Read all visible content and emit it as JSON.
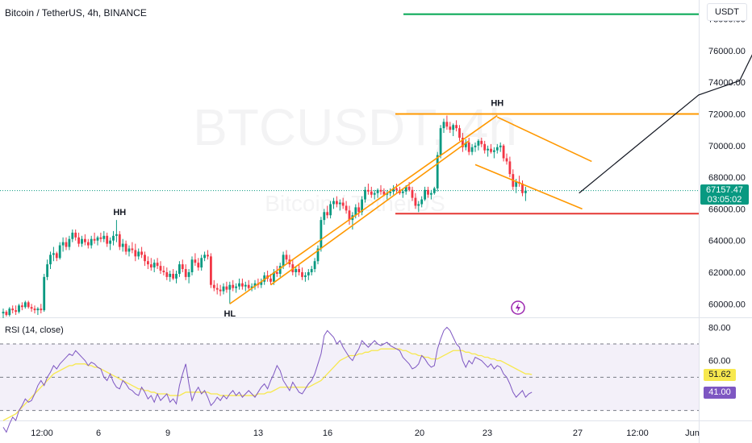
{
  "header": {
    "ticker_line": "Bitcoin / TetherUS, 4h, BINANCE",
    "currency_button": "USDT",
    "watermark_main": "BTCUSDT, 4h",
    "watermark_sub": "Bitcoin / TetherUS"
  },
  "rsi": {
    "label": "RSI (14, close)",
    "ma_value": "51.62",
    "rsi_value": "41.00",
    "ma_color": "#f7e84e",
    "rsi_color": "#7e57c2"
  },
  "last_price": {
    "value": "67157.47",
    "countdown": "03:05:02",
    "color": "#089981"
  },
  "colors": {
    "up": "#089981",
    "down": "#f23645",
    "trendline": "#ff9800",
    "target_green": "#00a651",
    "support_red": "#e53935",
    "projection": "#131722"
  },
  "chart_data": {
    "type": "candlestick",
    "price_ticks": [
      "60000.00",
      "62000.00",
      "64000.00",
      "66000.00",
      "68000.00",
      "70000.00",
      "72000.00",
      "74000.00",
      "76000.00",
      "78000.00"
    ],
    "price_range": [
      59200,
      79200
    ],
    "rsi_ticks": [
      "80.00",
      "60.00"
    ],
    "rsi_range": [
      25,
      85
    ],
    "rsi_bands": [
      70,
      50,
      30
    ],
    "x_ticks": [
      "12:00",
      "6",
      "9",
      "13",
      "16",
      "20",
      "23",
      "27",
      "12:00",
      "Jun"
    ],
    "annotations": [
      {
        "text": "HH",
        "price": 65300,
        "bar": 37
      },
      {
        "text": "HL",
        "price": 59900,
        "bar": 72
      },
      {
        "text": "HH",
        "price": 72200,
        "bar": 157
      }
    ],
    "horizontal_levels": [
      {
        "price": 79500,
        "color": "green"
      },
      {
        "price": 78300,
        "color": "green"
      },
      {
        "price": 72000,
        "color": "orange"
      },
      {
        "price": 65700,
        "color": "red"
      }
    ],
    "trend_channel": [
      {
        "from_bar": 72,
        "from_price": 60000,
        "to_bar": 157,
        "to_price": 71900
      },
      {
        "from_bar": 85,
        "from_price": 61200,
        "to_bar": 148,
        "to_price": 70300
      },
      {
        "from_bar": 157,
        "from_price": 71800,
        "to_bar": 187,
        "to_price": 69000
      },
      {
        "from_bar": 150,
        "from_price": 68800,
        "to_bar": 184,
        "to_price": 66000
      }
    ],
    "projection_path": [
      {
        "bar": 183,
        "price": 67000
      },
      {
        "bar": 221,
        "price": 73200
      },
      {
        "bar": 234,
        "price": 74100
      },
      {
        "bar": 247,
        "price": 79400
      }
    ],
    "ohlc": [
      [
        59400,
        59700,
        59100,
        59500
      ],
      [
        59500,
        59600,
        59200,
        59300
      ],
      [
        59300,
        59800,
        59200,
        59700
      ],
      [
        59700,
        59900,
        59400,
        59600
      ],
      [
        59600,
        59900,
        59300,
        59500
      ],
      [
        59500,
        60000,
        59400,
        59900
      ],
      [
        59900,
        60100,
        59600,
        59800
      ],
      [
        59800,
        60200,
        59700,
        60100
      ],
      [
        60100,
        60200,
        59700,
        59800
      ],
      [
        59800,
        60000,
        59500,
        59700
      ],
      [
        59700,
        59900,
        59400,
        59600
      ],
      [
        59600,
        59800,
        59300,
        59700
      ],
      [
        59700,
        60000,
        59400,
        59600
      ],
      [
        59600,
        61900,
        59500,
        61700
      ],
      [
        61700,
        62800,
        61500,
        62500
      ],
      [
        62500,
        63300,
        62200,
        63100
      ],
      [
        63100,
        63600,
        62700,
        63200
      ],
      [
        63200,
        63300,
        62700,
        62900
      ],
      [
        62900,
        63900,
        62800,
        63700
      ],
      [
        63700,
        64200,
        63300,
        63900
      ],
      [
        63900,
        64200,
        63400,
        63600
      ],
      [
        63600,
        64300,
        63400,
        64100
      ],
      [
        64100,
        64700,
        63900,
        64500
      ],
      [
        64500,
        64700,
        64000,
        64200
      ],
      [
        64200,
        64500,
        63600,
        63800
      ],
      [
        63800,
        64300,
        63600,
        64100
      ],
      [
        64100,
        64400,
        63700,
        63900
      ],
      [
        63900,
        64100,
        63500,
        63700
      ],
      [
        63700,
        64300,
        63500,
        64100
      ],
      [
        64100,
        64500,
        63800,
        64000
      ],
      [
        64000,
        64300,
        63700,
        64200
      ],
      [
        64200,
        64500,
        63900,
        64100
      ],
      [
        64100,
        64600,
        63900,
        64300
      ],
      [
        64300,
        64500,
        63600,
        63800
      ],
      [
        63800,
        64200,
        63400,
        64000
      ],
      [
        64000,
        64600,
        63700,
        64300
      ],
      [
        64300,
        65300,
        63900,
        64400
      ],
      [
        64400,
        64600,
        63400,
        63600
      ],
      [
        63600,
        64100,
        63300,
        63800
      ],
      [
        63800,
        64000,
        63100,
        63300
      ],
      [
        63300,
        63700,
        63000,
        63500
      ],
      [
        63500,
        63900,
        63200,
        63400
      ],
      [
        63400,
        63800,
        62700,
        63000
      ],
      [
        63000,
        63500,
        62800,
        63300
      ],
      [
        63300,
        63600,
        62900,
        63100
      ],
      [
        63100,
        63300,
        62400,
        62700
      ],
      [
        62700,
        63000,
        62200,
        62500
      ],
      [
        62500,
        62900,
        62100,
        62300
      ],
      [
        62300,
        62800,
        62000,
        62600
      ],
      [
        62600,
        62900,
        62200,
        62400
      ],
      [
        62400,
        62700,
        61900,
        62100
      ],
      [
        62100,
        62400,
        61800,
        62000
      ],
      [
        62000,
        62300,
        61500,
        61700
      ],
      [
        61700,
        62100,
        61400,
        61900
      ],
      [
        61900,
        62200,
        61500,
        61600
      ],
      [
        61600,
        62100,
        61300,
        61900
      ],
      [
        61900,
        62700,
        61700,
        62500
      ],
      [
        62500,
        62800,
        62000,
        62200
      ],
      [
        62200,
        62500,
        61500,
        61700
      ],
      [
        61700,
        62200,
        61300,
        62000
      ],
      [
        62000,
        63000,
        61800,
        62800
      ],
      [
        62800,
        63200,
        62400,
        62600
      ],
      [
        62600,
        62900,
        62100,
        62300
      ],
      [
        62300,
        63100,
        62100,
        62900
      ],
      [
        62900,
        63300,
        62700,
        63100
      ],
      [
        63100,
        63400,
        62800,
        63000
      ],
      [
        63000,
        63200,
        61000,
        61200
      ],
      [
        61200,
        61500,
        60800,
        61000
      ],
      [
        61000,
        61300,
        60600,
        60900
      ],
      [
        60900,
        61200,
        60500,
        60800
      ],
      [
        60800,
        61300,
        60600,
        61100
      ],
      [
        61100,
        61400,
        60700,
        60900
      ],
      [
        60900,
        61400,
        60000,
        61200
      ],
      [
        61200,
        61500,
        60800,
        61000
      ],
      [
        61000,
        61300,
        60700,
        61100
      ],
      [
        61100,
        61600,
        60900,
        61300
      ],
      [
        61300,
        61600,
        60900,
        61100
      ],
      [
        61100,
        61400,
        60800,
        61200
      ],
      [
        61200,
        61500,
        60900,
        61000
      ],
      [
        61000,
        61300,
        60800,
        61100
      ],
      [
        61100,
        61500,
        60900,
        61300
      ],
      [
        61300,
        61600,
        61000,
        61200
      ],
      [
        61200,
        61600,
        61000,
        61400
      ],
      [
        61400,
        62000,
        61200,
        61800
      ],
      [
        61800,
        62100,
        61400,
        61600
      ],
      [
        61600,
        61900,
        61200,
        61400
      ],
      [
        61400,
        62200,
        61200,
        62000
      ],
      [
        62000,
        62400,
        61700,
        61900
      ],
      [
        61900,
        62600,
        61700,
        62400
      ],
      [
        62400,
        63300,
        62200,
        63100
      ],
      [
        63100,
        63400,
        62600,
        62800
      ],
      [
        62800,
        63100,
        62300,
        62500
      ],
      [
        62500,
        62800,
        61800,
        62000
      ],
      [
        62000,
        62400,
        61700,
        62200
      ],
      [
        62200,
        62500,
        61800,
        62000
      ],
      [
        62000,
        62300,
        61500,
        61700
      ],
      [
        61700,
        62000,
        61400,
        61800
      ],
      [
        61800,
        62200,
        61500,
        62000
      ],
      [
        62000,
        62400,
        61800,
        62200
      ],
      [
        62200,
        62900,
        62000,
        62700
      ],
      [
        62700,
        63700,
        62500,
        63500
      ],
      [
        63500,
        65500,
        63300,
        65300
      ],
      [
        65300,
        66000,
        65000,
        65800
      ],
      [
        65800,
        66200,
        65400,
        65600
      ],
      [
        65600,
        66500,
        65400,
        66300
      ],
      [
        66300,
        66700,
        66000,
        66500
      ],
      [
        66500,
        66800,
        66100,
        66300
      ],
      [
        66300,
        66600,
        65900,
        66400
      ],
      [
        66400,
        66700,
        66000,
        66200
      ],
      [
        66200,
        66500,
        65700,
        65900
      ],
      [
        65900,
        66200,
        65000,
        65300
      ],
      [
        65300,
        65800,
        64700,
        65600
      ],
      [
        65600,
        66300,
        65400,
        66100
      ],
      [
        66100,
        66400,
        65500,
        65800
      ],
      [
        65800,
        66800,
        65600,
        66600
      ],
      [
        66600,
        67400,
        66400,
        67200
      ],
      [
        67200,
        67600,
        66900,
        67100
      ],
      [
        67100,
        67400,
        66700,
        66900
      ],
      [
        66900,
        67200,
        66600,
        67000
      ],
      [
        67000,
        67300,
        66700,
        67200
      ],
      [
        67200,
        67500,
        66900,
        67100
      ],
      [
        67100,
        67300,
        66800,
        66900
      ],
      [
        66900,
        67200,
        66600,
        67000
      ],
      [
        67000,
        67300,
        66800,
        67100
      ],
      [
        67100,
        67500,
        66900,
        67300
      ],
      [
        67300,
        67600,
        67000,
        67200
      ],
      [
        67200,
        67400,
        66900,
        67000
      ],
      [
        67000,
        67300,
        66700,
        67100
      ],
      [
        67100,
        67500,
        66900,
        67400
      ],
      [
        67400,
        67700,
        67100,
        67200
      ],
      [
        67200,
        67400,
        66500,
        66700
      ],
      [
        66700,
        67000,
        66000,
        66200
      ],
      [
        66200,
        66500,
        65800,
        66300
      ],
      [
        66300,
        66800,
        66100,
        66600
      ],
      [
        66600,
        67400,
        66500,
        67200
      ],
      [
        67200,
        67400,
        66700,
        66900
      ],
      [
        66900,
        67200,
        66600,
        67000
      ],
      [
        67000,
        67400,
        66900,
        67300
      ],
      [
        67300,
        69600,
        67100,
        69400
      ],
      [
        69400,
        71300,
        69200,
        71100
      ],
      [
        71100,
        71700,
        70800,
        71500
      ],
      [
        71500,
        71900,
        71000,
        71200
      ],
      [
        71200,
        71500,
        70800,
        71000
      ],
      [
        71000,
        71400,
        70600,
        71300
      ],
      [
        71300,
        71600,
        70900,
        71100
      ],
      [
        71100,
        71300,
        70300,
        70500
      ],
      [
        70500,
        70800,
        69600,
        69900
      ],
      [
        69900,
        70400,
        69700,
        70200
      ],
      [
        70200,
        70500,
        69400,
        69600
      ],
      [
        69600,
        70100,
        69400,
        69900
      ],
      [
        69900,
        70200,
        69600,
        70000
      ],
      [
        70000,
        70400,
        69700,
        70300
      ],
      [
        70300,
        70500,
        69900,
        70100
      ],
      [
        70100,
        70300,
        69500,
        69700
      ],
      [
        69700,
        70000,
        69300,
        69800
      ],
      [
        69800,
        70100,
        69500,
        69600
      ],
      [
        69600,
        69900,
        69200,
        69700
      ],
      [
        69700,
        70100,
        69500,
        69900
      ],
      [
        69900,
        70200,
        69600,
        70000
      ],
      [
        70000,
        70100,
        69000,
        69200
      ],
      [
        69200,
        69500,
        68800,
        69000
      ],
      [
        69000,
        69300,
        68000,
        68200
      ],
      [
        68200,
        68500,
        67200,
        67400
      ],
      [
        67400,
        67900,
        67000,
        67700
      ],
      [
        67700,
        68100,
        67400,
        67600
      ],
      [
        67600,
        67800,
        66800,
        67000
      ],
      [
        67000,
        67400,
        66500,
        67157
      ]
    ],
    "rsi_series": [
      20,
      17,
      22,
      26,
      24,
      30,
      33,
      37,
      35,
      36,
      40,
      45,
      48,
      45,
      50,
      53,
      57,
      55,
      58,
      60,
      62,
      64,
      63,
      66,
      64,
      62,
      60,
      57,
      59,
      58,
      56,
      55,
      50,
      48,
      52,
      47,
      44,
      43,
      48,
      46,
      43,
      42,
      40,
      39,
      44,
      41,
      37,
      39,
      35,
      40,
      36,
      38,
      40,
      35,
      37,
      34,
      45,
      52,
      58,
      46,
      36,
      41,
      44,
      40,
      42,
      38,
      33,
      35,
      38,
      36,
      39,
      37,
      40,
      42,
      39,
      41,
      38,
      40,
      42,
      40,
      38,
      41,
      44,
      46,
      43,
      48,
      52,
      57,
      54,
      48,
      45,
      42,
      47,
      44,
      41,
      40,
      43,
      46,
      48,
      52,
      58,
      64,
      75,
      78,
      76,
      74,
      70,
      72,
      68,
      65,
      62,
      60,
      64,
      67,
      72,
      70,
      68,
      70,
      72,
      70,
      69,
      70,
      71,
      69,
      68,
      67,
      66,
      62,
      60,
      58,
      55,
      56,
      58,
      63,
      61,
      58,
      56,
      57,
      67,
      73,
      78,
      80,
      78,
      74,
      70,
      68,
      60,
      56,
      60,
      58,
      62,
      61,
      60,
      58,
      56,
      58,
      55,
      57,
      56,
      52,
      50,
      46,
      41,
      38,
      40,
      42,
      38,
      40,
      41
    ],
    "rsi_ma_series": [
      24,
      25,
      26,
      27,
      28,
      30,
      32,
      34,
      36,
      38,
      40,
      42,
      44,
      46,
      48,
      50,
      52,
      53,
      54,
      55,
      56,
      57,
      57,
      58,
      58,
      58,
      58,
      57,
      57,
      56,
      56,
      55,
      54,
      53,
      52,
      51,
      50,
      49,
      48,
      47,
      46,
      45,
      44,
      43,
      43,
      42,
      42,
      41,
      41,
      40,
      40,
      40,
      40,
      39,
      39,
      39,
      39,
      40,
      41,
      41,
      41,
      41,
      41,
      41,
      41,
      41,
      40,
      40,
      40,
      39,
      39,
      39,
      39,
      39,
      39,
      39,
      39,
      39,
      39,
      39,
      39,
      40,
      40,
      40,
      41,
      41,
      42,
      43,
      44,
      44,
      44,
      44,
      44,
      44,
      44,
      44,
      44,
      44,
      45,
      46,
      47,
      48,
      50,
      52,
      54,
      56,
      58,
      60,
      61,
      62,
      63,
      63,
      63,
      64,
      64,
      65,
      65,
      66,
      66,
      66,
      67,
      67,
      67,
      67,
      67,
      67,
      67,
      66,
      66,
      65,
      64,
      64,
      63,
      63,
      62,
      62,
      61,
      61,
      61,
      62,
      63,
      64,
      65,
      66,
      66,
      66,
      66,
      65,
      65,
      64,
      64,
      63,
      63,
      62,
      62,
      61,
      61,
      60,
      60,
      59,
      58,
      57,
      56,
      55,
      54,
      53,
      52,
      52,
      51.62
    ]
  }
}
